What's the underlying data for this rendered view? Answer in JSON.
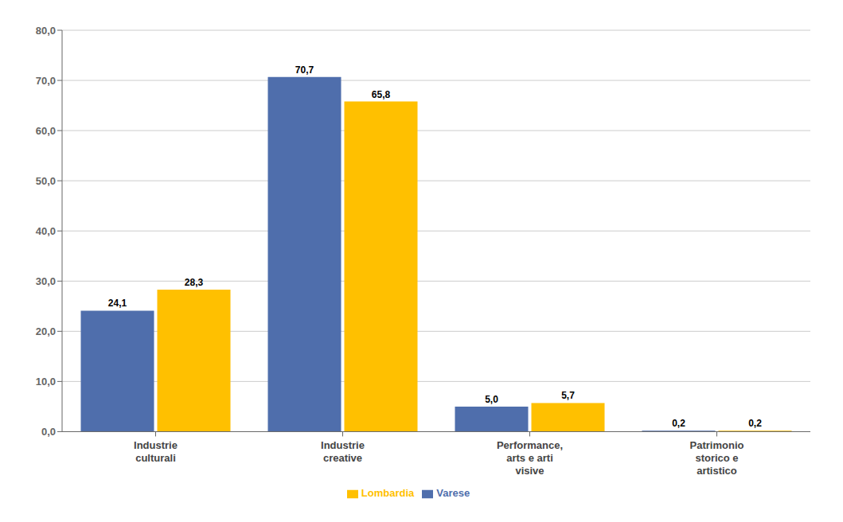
{
  "chart_data": {
    "type": "bar",
    "categories": [
      "Industrie\nculturali",
      "Industrie\ncreative",
      "Performance,\narts e arti\nvisive",
      "Patrimonio\nstorico e\nartistico"
    ],
    "series": [
      {
        "name": "Varese",
        "color": "#4F6EAC",
        "values": [
          24.1,
          70.7,
          5.0,
          0.2
        ],
        "value_labels": [
          "24,1",
          "70,7",
          "5,0",
          "0,2"
        ]
      },
      {
        "name": "Lombardia",
        "color": "#FFC000",
        "values": [
          28.3,
          65.8,
          5.7,
          0.2
        ],
        "value_labels": [
          "28,3",
          "65,8",
          "5,7",
          "0,2"
        ]
      }
    ],
    "ylim": [
      0,
      80
    ],
    "yticks": [
      {
        "value": 0.0,
        "label": "0,0"
      },
      {
        "value": 10.0,
        "label": "10,0"
      },
      {
        "value": 20.0,
        "label": "20,0"
      },
      {
        "value": 30.0,
        "label": "30,0"
      },
      {
        "value": 40.0,
        "label": "40,0"
      },
      {
        "value": 50.0,
        "label": "50,0"
      },
      {
        "value": 60.0,
        "label": "60,0"
      },
      {
        "value": 70.0,
        "label": "70,0"
      },
      {
        "value": 80.0,
        "label": "80,0"
      }
    ],
    "grid": true,
    "legend": "bottom",
    "data_labels": true
  }
}
